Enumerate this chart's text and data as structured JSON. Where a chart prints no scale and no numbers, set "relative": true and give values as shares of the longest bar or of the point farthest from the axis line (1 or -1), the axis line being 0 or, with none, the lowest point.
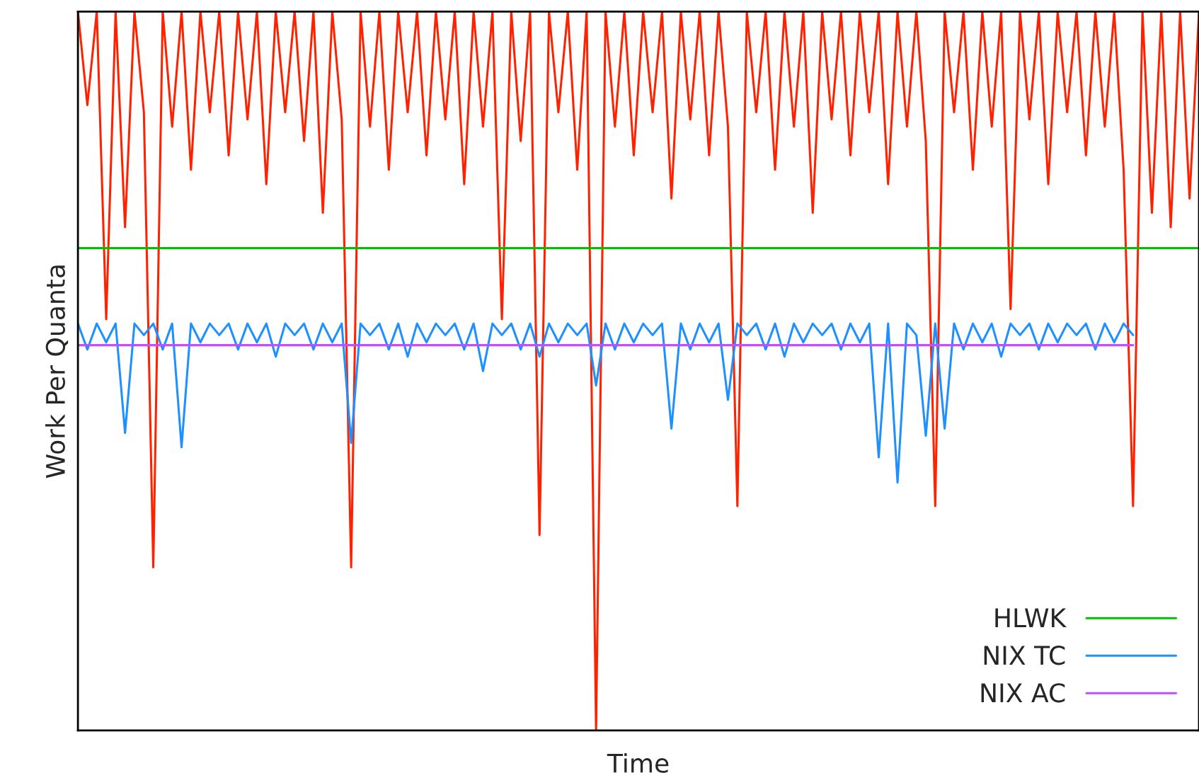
{
  "chart_data": {
    "type": "line",
    "xlabel": "Time",
    "ylabel": "Work Per Quanta",
    "relative": true,
    "legend": "bottom right",
    "grid": false,
    "categories": [
      null,
      null,
      null,
      null,
      null,
      null,
      null,
      null,
      null,
      null,
      null,
      null,
      null,
      null,
      null,
      null,
      null,
      null,
      null,
      null,
      null,
      null,
      null,
      null,
      null,
      null,
      null,
      null,
      null,
      null,
      null,
      null,
      null,
      null,
      null,
      null,
      null,
      null,
      null,
      null,
      null,
      null,
      null,
      null,
      null,
      null,
      null,
      null,
      null,
      null,
      null,
      null,
      null,
      null,
      null,
      null,
      null,
      null,
      null,
      null,
      null,
      null,
      null,
      null,
      null,
      null,
      null,
      null,
      null,
      null,
      null,
      null,
      null,
      null,
      null,
      null,
      null,
      null,
      null,
      null,
      null,
      null,
      null,
      null,
      null,
      null,
      null,
      null,
      null,
      null,
      null,
      null,
      null,
      null,
      null,
      null,
      null,
      null,
      null,
      null,
      null,
      null,
      null,
      null,
      null,
      null,
      null,
      null,
      null,
      null,
      null,
      null,
      null,
      null,
      null,
      null,
      null,
      null,
      null,
      null
    ],
    "series": [
      {
        "color": "#ff2200",
        "values": [
          1,
          0.87,
          1,
          0.572,
          1,
          0.7,
          1,
          0.86,
          0.227,
          1,
          0.84,
          1,
          0.78,
          1,
          0.86,
          1,
          0.8,
          1,
          0.85,
          1,
          0.76,
          1,
          0.86,
          1,
          0.82,
          1,
          0.72,
          1,
          0.85,
          0.227,
          1,
          0.84,
          1,
          0.78,
          1,
          0.86,
          1,
          0.8,
          1,
          0.85,
          1,
          0.76,
          1,
          0.84,
          1,
          0.572,
          1,
          0.82,
          1,
          0.272,
          1,
          0.86,
          1,
          0.78,
          1,
          0,
          1,
          0.84,
          1,
          0.8,
          1,
          0.86,
          1,
          0.74,
          1,
          0.85,
          1,
          0.8,
          1,
          0.84,
          0.312,
          1,
          0.86,
          1,
          0.78,
          1,
          0.84,
          1,
          0.72,
          1,
          0.85,
          1,
          0.8,
          1,
          0.86,
          1,
          0.76,
          1,
          0.84,
          1,
          0.82,
          0.312,
          1,
          0.86,
          1,
          0.78,
          1,
          0.84,
          1,
          0.586,
          1,
          0.85,
          1,
          0.76,
          1,
          0.86,
          1,
          0.8,
          1,
          0.84,
          1,
          0.78,
          0.312,
          1,
          0.72,
          1,
          0.7,
          1,
          0.74,
          1
        ]
      },
      {
        "name": "HLWK",
        "color": "#00c000",
        "values": [
          0.671,
          0.671,
          0.671,
          0.671,
          0.671,
          0.671,
          0.671,
          0.671,
          0.671,
          0.671,
          0.671,
          0.671,
          0.671,
          0.671,
          0.671,
          0.671,
          0.671,
          0.671,
          0.671,
          0.671,
          0.671,
          0.671,
          0.671,
          0.671,
          0.671,
          0.671,
          0.671,
          0.671,
          0.671,
          0.671,
          0.671,
          0.671,
          0.671,
          0.671,
          0.671,
          0.671,
          0.671,
          0.671,
          0.671,
          0.671,
          0.671,
          0.671,
          0.671,
          0.671,
          0.671,
          0.671,
          0.671,
          0.671,
          0.671,
          0.671,
          0.671,
          0.671,
          0.671,
          0.671,
          0.671,
          0.671,
          0.671,
          0.671,
          0.671,
          0.671,
          0.671,
          0.671,
          0.671,
          0.671,
          0.671,
          0.671,
          0.671,
          0.671,
          0.671,
          0.671,
          0.671,
          0.671,
          0.671,
          0.671,
          0.671,
          0.671,
          0.671,
          0.671,
          0.671,
          0.671,
          0.671,
          0.671,
          0.671,
          0.671,
          0.671,
          0.671,
          0.671,
          0.671,
          0.671,
          0.671,
          0.671,
          0.671,
          0.671,
          0.671,
          0.671,
          0.671,
          0.671,
          0.671,
          0.671,
          0.671,
          0.671,
          0.671,
          0.671,
          0.671,
          0.671,
          0.671,
          0.671,
          0.671,
          0.671,
          0.671,
          0.671,
          0.671,
          0.671,
          0.671,
          0.671,
          0.671,
          0.671,
          0.671,
          0.671,
          0.671
        ]
      },
      {
        "name": "NIX TC",
        "color": "#1e90ff",
        "values": [
          0.566,
          0.53,
          0.566,
          0.54,
          0.566,
          0.414,
          0.566,
          0.55,
          0.566,
          0.53,
          0.566,
          0.394,
          0.566,
          0.54,
          0.566,
          0.55,
          0.566,
          0.53,
          0.566,
          0.54,
          0.566,
          0.52,
          0.566,
          0.55,
          0.566,
          0.53,
          0.566,
          0.54,
          0.566,
          0.4,
          0.566,
          0.55,
          0.566,
          0.53,
          0.566,
          0.52,
          0.566,
          0.54,
          0.566,
          0.55,
          0.566,
          0.53,
          0.566,
          0.5,
          0.566,
          0.55,
          0.566,
          0.53,
          0.566,
          0.52,
          0.566,
          0.54,
          0.566,
          0.55,
          0.566,
          0.48,
          0.566,
          0.53,
          0.566,
          0.54,
          0.566,
          0.55,
          0.566,
          0.42,
          0.566,
          0.53,
          0.566,
          0.54,
          0.566,
          0.46,
          0.566,
          0.55,
          0.566,
          0.53,
          0.566,
          0.52,
          0.566,
          0.54,
          0.566,
          0.55,
          0.566,
          0.53,
          0.566,
          0.54,
          0.566,
          0.38,
          0.566,
          0.345,
          0.566,
          0.55,
          0.41,
          0.566,
          0.42,
          0.566,
          0.53,
          0.566,
          0.54,
          0.566,
          0.52,
          0.566,
          0.55,
          0.566,
          0.53,
          0.566,
          0.54,
          0.566,
          0.55,
          0.566,
          0.53,
          0.566,
          0.54,
          0.566,
          0.55,
          null,
          null,
          null,
          null,
          null,
          null,
          null
        ]
      },
      {
        "name": "NIX AC",
        "color": "#c050ff",
        "values": [
          0.536,
          0.536,
          0.536,
          0.536,
          0.536,
          0.536,
          0.536,
          0.536,
          0.536,
          0.536,
          0.536,
          0.536,
          0.536,
          0.536,
          0.536,
          0.536,
          0.536,
          0.536,
          0.536,
          0.536,
          0.536,
          0.536,
          0.536,
          0.536,
          0.536,
          0.536,
          0.536,
          0.536,
          0.536,
          0.536,
          0.536,
          0.536,
          0.536,
          0.536,
          0.536,
          0.536,
          0.536,
          0.536,
          0.536,
          0.536,
          0.536,
          0.536,
          0.536,
          0.536,
          0.536,
          0.536,
          0.536,
          0.536,
          0.536,
          0.536,
          0.536,
          0.536,
          0.536,
          0.536,
          0.536,
          0.536,
          0.536,
          0.536,
          0.536,
          0.536,
          0.536,
          0.536,
          0.536,
          0.536,
          0.536,
          0.536,
          0.536,
          0.536,
          0.536,
          0.536,
          0.536,
          0.536,
          0.536,
          0.536,
          0.536,
          0.536,
          0.536,
          0.536,
          0.536,
          0.536,
          0.536,
          0.536,
          0.536,
          0.536,
          0.536,
          0.536,
          0.536,
          0.536,
          0.536,
          0.536,
          0.536,
          0.536,
          0.536,
          0.536,
          0.536,
          0.536,
          0.536,
          0.536,
          0.536,
          0.536,
          0.536,
          0.536,
          0.536,
          0.536,
          0.536,
          0.536,
          0.536,
          0.536,
          0.536,
          0.536,
          0.536,
          0.536,
          0.536,
          null,
          null,
          null,
          null,
          null,
          null,
          null
        ]
      }
    ]
  }
}
